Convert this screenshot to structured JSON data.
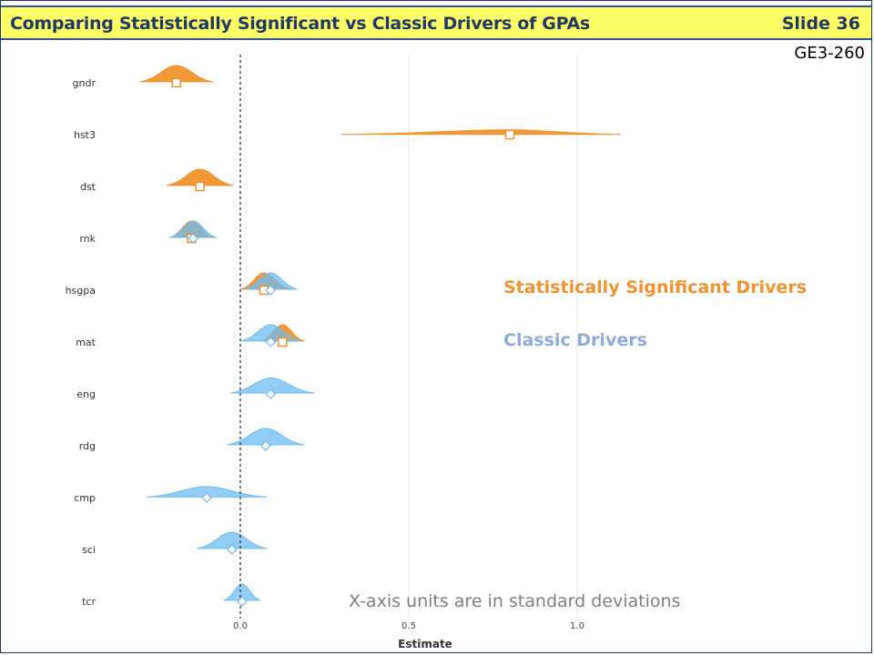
{
  "header": {
    "title": "Comparing Statistically Significant vs Classic Drivers of GPAs",
    "slide": "Slide 36",
    "code": "GE3-260"
  },
  "legend": {
    "significant": "Statistically Significant Drivers",
    "classic": "Classic Drivers"
  },
  "note": "X-axis units are in standard deviations",
  "colors": {
    "significant": "#f0922e",
    "classic": "#6cbcf0",
    "title_bg": "#ffff66",
    "title_text": "#1f3864"
  },
  "chart_data": {
    "type": "ridge",
    "xlabel": "Estimate",
    "xlim": [
      -0.55,
      1.25
    ],
    "xticks": [
      0.0,
      0.5,
      1.0
    ],
    "xtick_labels": [
      "0.0",
      "0.5",
      "1.0"
    ],
    "categories": [
      "gndr",
      "hst3",
      "dst",
      "rnk",
      "hsgpa",
      "mat",
      "eng",
      "rdg",
      "cmp",
      "sci",
      "tcr"
    ],
    "series": [
      {
        "key": "significant",
        "points": [
          {
            "var": "gndr",
            "estimate": -0.19,
            "low": -0.3,
            "high": -0.08
          },
          {
            "var": "hst3",
            "estimate": 0.8,
            "low": 0.3,
            "high": 1.13
          },
          {
            "var": "dst",
            "estimate": -0.12,
            "low": -0.22,
            "high": -0.02
          },
          {
            "var": "rnk",
            "estimate": -0.145,
            "low": -0.21,
            "high": -0.08
          },
          {
            "var": "hsgpa",
            "estimate": 0.07,
            "low": 0.0,
            "high": 0.15
          },
          {
            "var": "mat",
            "estimate": 0.125,
            "low": 0.06,
            "high": 0.19
          }
        ]
      },
      {
        "key": "classic",
        "points": [
          {
            "var": "rnk",
            "estimate": -0.14,
            "low": -0.21,
            "high": -0.07
          },
          {
            "var": "hsgpa",
            "estimate": 0.09,
            "low": 0.01,
            "high": 0.17
          },
          {
            "var": "mat",
            "estimate": 0.09,
            "low": 0.0,
            "high": 0.18
          },
          {
            "var": "eng",
            "estimate": 0.09,
            "low": -0.03,
            "high": 0.22
          },
          {
            "var": "rdg",
            "estimate": 0.075,
            "low": -0.04,
            "high": 0.19
          },
          {
            "var": "cmp",
            "estimate": -0.1,
            "low": -0.28,
            "high": 0.08
          },
          {
            "var": "sci",
            "estimate": -0.025,
            "low": -0.13,
            "high": 0.08
          },
          {
            "var": "tcr",
            "estimate": 0.005,
            "low": -0.05,
            "high": 0.06
          }
        ]
      }
    ]
  }
}
